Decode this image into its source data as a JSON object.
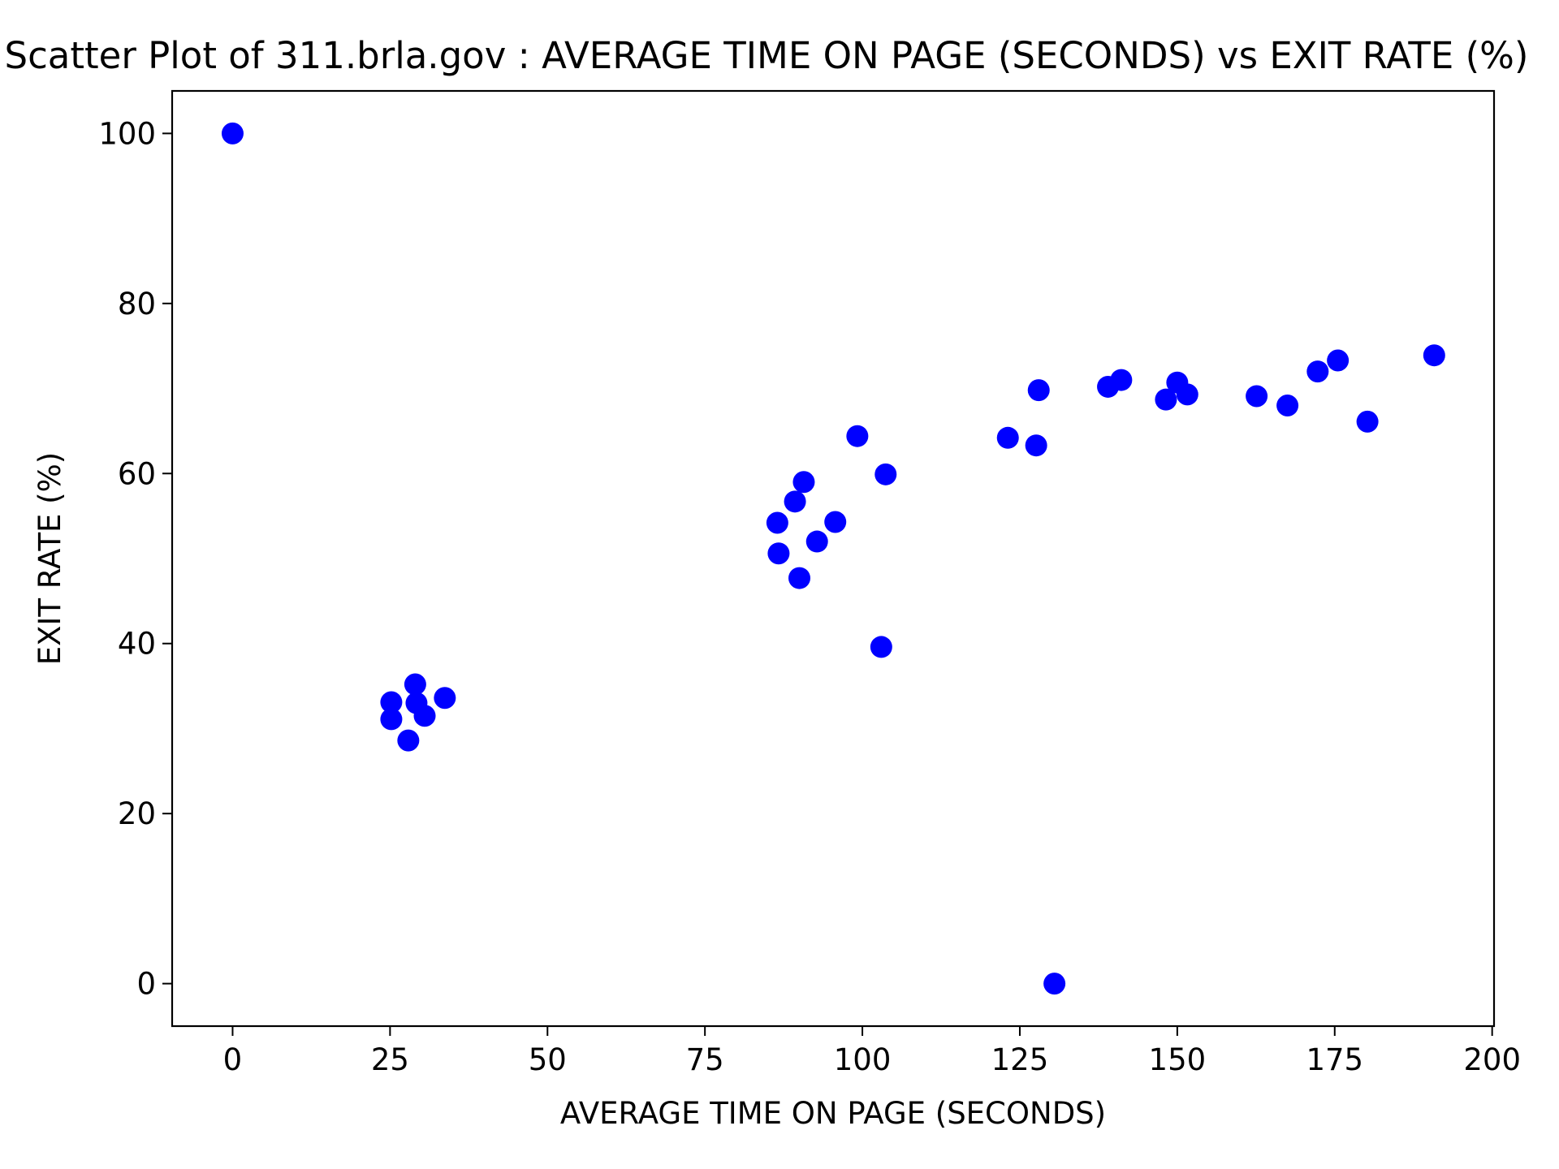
{
  "chart_data": {
    "type": "scatter",
    "title": "Scatter Plot of 311.brla.gov : AVERAGE TIME ON PAGE (SECONDS) vs EXIT RATE (%)",
    "xlabel": "AVERAGE TIME ON PAGE (SECONDS)",
    "ylabel": "EXIT RATE (%)",
    "xlim": [
      -9.6,
      200.3
    ],
    "ylim": [
      -5,
      105
    ],
    "xticks": [
      0,
      25,
      50,
      75,
      100,
      125,
      150,
      175,
      200
    ],
    "yticks": [
      0,
      20,
      40,
      60,
      80,
      100
    ],
    "xtick_labels": [
      "0",
      "25",
      "50",
      "75",
      "100",
      "125",
      "150",
      "175",
      "200"
    ],
    "ytick_labels": [
      "0",
      "20",
      "40",
      "60",
      "80",
      "100"
    ],
    "grid": false,
    "legend": "none",
    "marker_color": "#0000ff",
    "series": [
      {
        "points": [
          {
            "x": 0,
            "y": 100
          },
          {
            "x": 25.2,
            "y": 33.1
          },
          {
            "x": 25.2,
            "y": 31.1
          },
          {
            "x": 27.9,
            "y": 28.6
          },
          {
            "x": 29.0,
            "y": 35.2
          },
          {
            "x": 29.2,
            "y": 33.0
          },
          {
            "x": 30.5,
            "y": 31.5
          },
          {
            "x": 33.7,
            "y": 33.6
          },
          {
            "x": 86.5,
            "y": 54.2
          },
          {
            "x": 86.7,
            "y": 50.6
          },
          {
            "x": 89.3,
            "y": 56.7
          },
          {
            "x": 90.0,
            "y": 47.7
          },
          {
            "x": 90.7,
            "y": 59.0
          },
          {
            "x": 92.8,
            "y": 52.0
          },
          {
            "x": 95.7,
            "y": 54.3
          },
          {
            "x": 99.2,
            "y": 64.4
          },
          {
            "x": 103.0,
            "y": 39.6
          },
          {
            "x": 103.7,
            "y": 59.9
          },
          {
            "x": 123.1,
            "y": 64.2
          },
          {
            "x": 127.6,
            "y": 63.3
          },
          {
            "x": 128.0,
            "y": 69.8
          },
          {
            "x": 130.5,
            "y": 0
          },
          {
            "x": 139.0,
            "y": 70.2
          },
          {
            "x": 141.1,
            "y": 71.0
          },
          {
            "x": 148.2,
            "y": 68.7
          },
          {
            "x": 150.0,
            "y": 70.7
          },
          {
            "x": 151.6,
            "y": 69.3
          },
          {
            "x": 162.6,
            "y": 69.1
          },
          {
            "x": 167.5,
            "y": 68.0
          },
          {
            "x": 172.3,
            "y": 72.0
          },
          {
            "x": 175.5,
            "y": 73.3
          },
          {
            "x": 180.2,
            "y": 66.1
          },
          {
            "x": 190.8,
            "y": 73.9
          }
        ]
      }
    ]
  }
}
